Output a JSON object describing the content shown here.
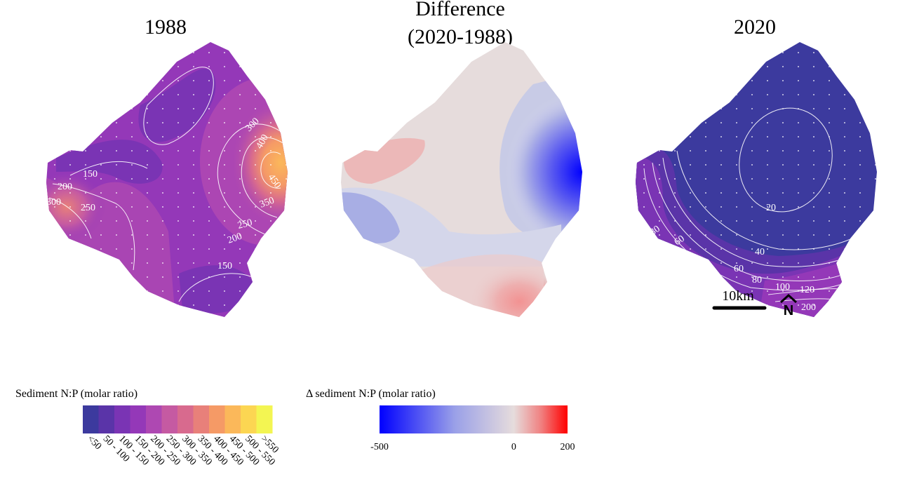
{
  "panels": {
    "left": {
      "title": "1988"
    },
    "middle": {
      "title_line1": "Difference",
      "title_line2": "(2020-1988)"
    },
    "right": {
      "title": "2020"
    }
  },
  "contour_labels_1988": [
    "150",
    "200",
    "250",
    "300",
    "300",
    "400",
    "450",
    "350",
    "250",
    "200",
    "150"
  ],
  "contour_labels_2020": [
    "20",
    "40",
    "60",
    "80",
    "100",
    "120",
    "200",
    "80",
    "60"
  ],
  "scale_bar": {
    "label": "10km"
  },
  "north_arrow": {
    "label": "N"
  },
  "legend_np": {
    "title": "Sediment N:P (molar ratio)",
    "classes": [
      "<50",
      "50 - 100",
      "100 - 150",
      "150 - 200",
      "200 - 250",
      "250 - 300",
      "300 - 350",
      "350 - 400",
      "400 - 450",
      "450 - 500",
      "500 - 550",
      ">550"
    ],
    "colors": [
      "#3c3a9e",
      "#5a34a8",
      "#7a34b4",
      "#9438b8",
      "#ae48b2",
      "#c55aa2",
      "#d86a8e",
      "#e8807a",
      "#f59a66",
      "#fbb85a",
      "#fcd652",
      "#f3f552"
    ]
  },
  "legend_diff": {
    "title": "Δ sediment N:P (molar ratio)",
    "ticks": [
      "-500",
      "0",
      "200"
    ],
    "range": [
      -500,
      200
    ],
    "colors": [
      "#0000ff",
      "#dcdcec",
      "#ff0000"
    ]
  }
}
